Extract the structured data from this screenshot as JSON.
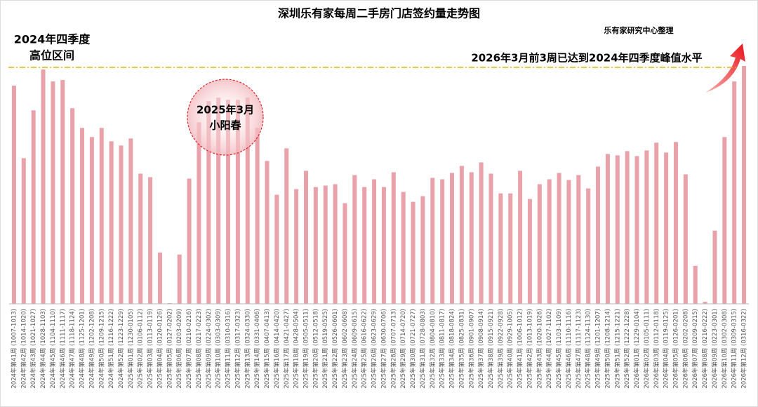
{
  "chart_data": {
    "type": "bar",
    "title": "深圳乐有家每周二手房门店签约量走势图",
    "source": "乐有家研究中心整理",
    "annotations": {
      "q4_label": [
        "2024年四季度",
        "高位区间"
      ],
      "peak_note": "2026年3月前3周已达到2024年四季度峰值水平",
      "spring": [
        "2025年3月",
        "小阳春"
      ]
    },
    "reference_value": 336,
    "color": "#e9a1aa",
    "ylim": [
      0,
      345
    ],
    "categories": [
      "2024年第41周 (1007-1013)",
      "2024年第42周 (1014-1020)",
      "2024年第43周 (1021-1027)",
      "2024年第44周 (1028-1103)",
      "2024年第45周 (1104-1110)",
      "2024年第46周 (1111-1117)",
      "2024年第47周 (1118-1124)",
      "2024年第48周 (1125-1201)",
      "2024年第49周 (1202-1208)",
      "2024年第50周 (1209-1215)",
      "2024年第51周 (1216-1222)",
      "2024年第52周 (1223-1229)",
      "2025年第01周 (1230-0105)",
      "2025年第02周 (0106-0112)",
      "2025年第03周 (0113-0119)",
      "2025年第04周 (0120-0126)",
      "2025年第05周 (0127-0202)",
      "2025年第06周 (0203-0209)",
      "2025年第07周 (0210-0216)",
      "2025年第08周 (0217-0223)",
      "2025年第09周 (0224-0302)",
      "2025年第10周 (0303-0309)",
      "2025年第11周 (0310-0316)",
      "2025年第12周 (0317-0323)",
      "2025年第13周 (0324-0330)",
      "2025年第14周 (0331-0406)",
      "2025年第15周 (0407-0413)",
      "2025年第16周 (0414-0420)",
      "2025年第17周 (0421-0427)",
      "2025年第18周 (0428-0504)",
      "2025年第19周 (0505-0511)",
      "2025年第20周 (0512-0518)",
      "2025年第21周 (0519-0525)",
      "2025年第22周 (0526-0601)",
      "2025年第23周 (0602-0608)",
      "2025年第24周 (0609-0615)",
      "2025年第25周 (0616-0622)",
      "2025年第26周 (0623-0629)",
      "2025年第27周 (0630-0706)",
      "2025年第28周 (0707-0713)",
      "2025年第29周 (0714-0720)",
      "2025年第30周 (0721-0727)",
      "2025年第31周 (0728-0803)",
      "2025年第32周 (0804-0810)",
      "2025年第33周 (0811-0817)",
      "2025年第34周 (0818-0824)",
      "2025年第35周 (0825-0831)",
      "2025年第36周 (0901-0907)",
      "2025年第37周 (0908-0914)",
      "2025年第38周 (0915-0921)",
      "2025年第39周 (0922-0928)",
      "2025年第40周 (0929-1005)",
      "2025年第41周 (1006-1012)",
      "2025年第42周 (1013-1019)",
      "2025年第43周 (1020-1026)",
      "2025年第44周 (1027-1102)",
      "2025年第45周 (1103-1109)",
      "2025年第46周 (1110-1116)",
      "2025年第47周 (1117-1123)",
      "2025年第48周 (1124-1130)",
      "2025年第49周 (1201-1207)",
      "2025年第50周 (1208-1214)",
      "2025年第51周 (1215-1221)",
      "2025年第52周 (1222-1228)",
      "2026年第01周 (1229-0104)",
      "2026年第02周 (0105-0111)",
      "2026年第03周 (0112-0118)",
      "2026年第04周 (0119-0125)",
      "2026年第05周 (0126-0201)",
      "2026年第06周 (0202-0208)",
      "2026年第07周 (0209-0215)",
      "2026年第08周 (0216-0222)",
      "2026年第09周 (0223-0301)",
      "2026年第10周 (0302-0308)",
      "2026年第11周 (0309-0315)",
      "2026年第12周 (0316-0322)"
    ],
    "values": [
      310,
      207,
      275,
      333,
      316,
      318,
      278,
      250,
      237,
      250,
      231,
      225,
      235,
      185,
      180,
      73,
      1,
      70,
      178,
      258,
      288,
      293,
      290,
      290,
      293,
      250,
      203,
      155,
      221,
      163,
      189,
      166,
      168,
      170,
      143,
      183,
      166,
      177,
      166,
      187,
      159,
      145,
      153,
      179,
      177,
      186,
      196,
      187,
      201,
      185,
      157,
      157,
      189,
      149,
      170,
      177,
      186,
      176,
      183,
      164,
      195,
      213,
      211,
      217,
      210,
      218,
      229,
      215,
      230,
      184,
      54,
      3,
      104,
      237,
      316,
      338
    ]
  }
}
